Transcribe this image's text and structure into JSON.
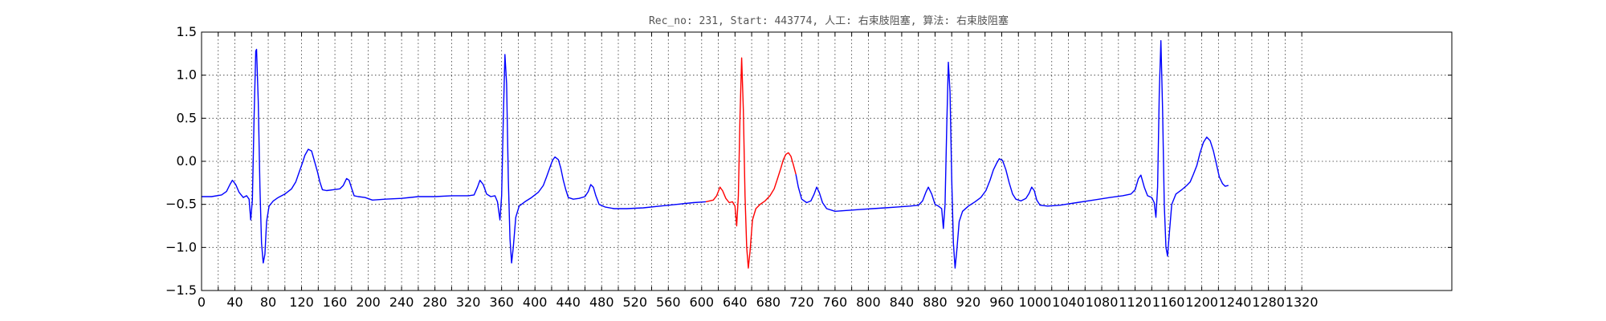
{
  "chart_data": {
    "type": "line",
    "title": "Rec_no: 231, Start: 443774, 人工: 右束肢阻塞, 算法: 右束肢阻塞",
    "xlabel": "",
    "ylabel": "",
    "xlim": [
      0,
      1500
    ],
    "ylim": [
      -1.5,
      1.5
    ],
    "grid": true,
    "yticks": [
      1.5,
      1.0,
      0.5,
      0.0,
      -0.5,
      -1.0,
      -1.5
    ],
    "ytick_labels": [
      "1.5",
      "1.0",
      "0.5",
      "0.0",
      "−0.5",
      "−1.0",
      "−1.5"
    ],
    "xticks": [
      0,
      20,
      40,
      60,
      80,
      100,
      120,
      140,
      160,
      180,
      200,
      220,
      240,
      260,
      280,
      300,
      320,
      340,
      360,
      380,
      400,
      420,
      440,
      460,
      480,
      500,
      520,
      540,
      560,
      580,
      600,
      620,
      640,
      660,
      680,
      700,
      720,
      740,
      760,
      780,
      800,
      820,
      840,
      860,
      880,
      900,
      920,
      940,
      960,
      980,
      1000,
      1020,
      1040,
      1060,
      1080,
      1100,
      1120,
      1140,
      1160,
      1180,
      1200,
      1220,
      1240,
      1260,
      1280,
      1300,
      1320
    ],
    "xtick_labels": [
      "0",
      "",
      "40",
      "",
      "80",
      "",
      "120",
      "",
      "160",
      "",
      "200",
      "",
      "240",
      "",
      "280",
      "",
      "320",
      "",
      "360",
      "",
      "400",
      "",
      "440",
      "",
      "480",
      "",
      "520",
      "",
      "560",
      "",
      "600",
      "",
      "640",
      "",
      "680",
      "",
      "720",
      "",
      "760",
      "",
      "800",
      "",
      "840",
      "",
      "880",
      "",
      "920",
      "",
      "960",
      "",
      "1000",
      "",
      "1040",
      "",
      "1080",
      "",
      "1120",
      "",
      "1160",
      "",
      "1200",
      "",
      "1240",
      "",
      "1280",
      "",
      "1320"
    ],
    "series": [
      {
        "color": "#0000ff",
        "points": [
          [
            0,
            -0.41
          ],
          [
            12,
            -0.41
          ],
          [
            24,
            -0.39
          ],
          [
            30,
            -0.35
          ],
          [
            34,
            -0.27
          ],
          [
            37,
            -0.22
          ],
          [
            41,
            -0.27
          ],
          [
            45,
            -0.36
          ],
          [
            50,
            -0.42
          ],
          [
            54,
            -0.4
          ],
          [
            57,
            -0.44
          ],
          [
            59,
            -0.68
          ],
          [
            61,
            -0.45
          ],
          [
            63,
            0.5
          ],
          [
            65,
            1.28
          ],
          [
            66,
            1.3
          ],
          [
            68,
            0.7
          ],
          [
            70,
            -0.3
          ],
          [
            72,
            -0.95
          ],
          [
            74,
            -1.18
          ],
          [
            76,
            -1.08
          ],
          [
            78,
            -0.7
          ],
          [
            81,
            -0.52
          ],
          [
            86,
            -0.46
          ],
          [
            92,
            -0.42
          ],
          [
            100,
            -0.38
          ],
          [
            108,
            -0.32
          ],
          [
            113,
            -0.24
          ],
          [
            117,
            -0.13
          ],
          [
            121,
            -0.02
          ],
          [
            124,
            0.07
          ],
          [
            128,
            0.14
          ],
          [
            132,
            0.12
          ],
          [
            135,
            0.02
          ],
          [
            139,
            -0.12
          ],
          [
            142,
            -0.24
          ],
          [
            145,
            -0.33
          ],
          [
            150,
            -0.34
          ],
          [
            158,
            -0.33
          ],
          [
            166,
            -0.32
          ],
          [
            170,
            -0.28
          ],
          [
            174,
            -0.2
          ],
          [
            177,
            -0.22
          ],
          [
            180,
            -0.31
          ],
          [
            183,
            -0.4
          ],
          [
            188,
            -0.41
          ],
          [
            196,
            -0.42
          ],
          [
            205,
            -0.45
          ],
          [
            220,
            -0.44
          ],
          [
            240,
            -0.43
          ],
          [
            260,
            -0.41
          ],
          [
            280,
            -0.41
          ],
          [
            300,
            -0.4
          ],
          [
            320,
            -0.4
          ],
          [
            327,
            -0.39
          ],
          [
            331,
            -0.3
          ],
          [
            334,
            -0.22
          ],
          [
            338,
            -0.27
          ],
          [
            342,
            -0.38
          ],
          [
            347,
            -0.41
          ],
          [
            352,
            -0.4
          ],
          [
            355,
            -0.47
          ],
          [
            358,
            -0.68
          ],
          [
            360,
            -0.4
          ],
          [
            362,
            0.5
          ],
          [
            364,
            1.24
          ],
          [
            366,
            0.9
          ],
          [
            368,
            -0.2
          ],
          [
            370,
            -0.9
          ],
          [
            372,
            -1.18
          ],
          [
            374,
            -1.0
          ],
          [
            377,
            -0.65
          ],
          [
            381,
            -0.52
          ],
          [
            388,
            -0.47
          ],
          [
            396,
            -0.42
          ],
          [
            404,
            -0.36
          ],
          [
            410,
            -0.28
          ],
          [
            414,
            -0.18
          ],
          [
            418,
            -0.07
          ],
          [
            421,
            0.01
          ],
          [
            424,
            0.05
          ],
          [
            428,
            0.02
          ],
          [
            431,
            -0.08
          ],
          [
            434,
            -0.22
          ],
          [
            437,
            -0.33
          ],
          [
            440,
            -0.42
          ],
          [
            446,
            -0.44
          ],
          [
            453,
            -0.43
          ],
          [
            460,
            -0.41
          ],
          [
            464,
            -0.35
          ],
          [
            467,
            -0.27
          ],
          [
            470,
            -0.3
          ],
          [
            473,
            -0.4
          ],
          [
            477,
            -0.5
          ],
          [
            484,
            -0.53
          ],
          [
            495,
            -0.55
          ],
          [
            510,
            -0.55
          ],
          [
            530,
            -0.54
          ],
          [
            550,
            -0.52
          ],
          [
            570,
            -0.5
          ],
          [
            590,
            -0.48
          ],
          [
            605,
            -0.47
          ]
        ]
      },
      {
        "color": "#ff0000",
        "points": [
          [
            605,
            -0.47
          ],
          [
            614,
            -0.45
          ],
          [
            618,
            -0.4
          ],
          [
            622,
            -0.3
          ],
          [
            625,
            -0.34
          ],
          [
            629,
            -0.43
          ],
          [
            633,
            -0.48
          ],
          [
            637,
            -0.47
          ],
          [
            640,
            -0.52
          ],
          [
            642,
            -0.75
          ],
          [
            644,
            -0.4
          ],
          [
            646,
            0.5
          ],
          [
            648,
            1.2
          ],
          [
            650,
            0.6
          ],
          [
            652,
            -0.4
          ],
          [
            654,
            -1.0
          ],
          [
            656,
            -1.24
          ],
          [
            658,
            -1.05
          ],
          [
            661,
            -0.68
          ],
          [
            665,
            -0.55
          ],
          [
            670,
            -0.5
          ],
          [
            676,
            -0.46
          ],
          [
            682,
            -0.4
          ],
          [
            687,
            -0.32
          ],
          [
            691,
            -0.2
          ],
          [
            695,
            -0.08
          ],
          [
            698,
            0.02
          ],
          [
            701,
            0.08
          ],
          [
            704,
            0.1
          ],
          [
            707,
            0.06
          ],
          [
            710,
            -0.04
          ],
          [
            713,
            -0.15
          ]
        ]
      },
      {
        "color": "#0000ff",
        "points": [
          [
            713,
            -0.15
          ],
          [
            716,
            -0.3
          ],
          [
            720,
            -0.44
          ],
          [
            726,
            -0.48
          ],
          [
            731,
            -0.46
          ],
          [
            735,
            -0.38
          ],
          [
            738,
            -0.3
          ],
          [
            741,
            -0.36
          ],
          [
            745,
            -0.48
          ],
          [
            750,
            -0.55
          ],
          [
            760,
            -0.58
          ],
          [
            775,
            -0.57
          ],
          [
            790,
            -0.56
          ],
          [
            805,
            -0.55
          ],
          [
            820,
            -0.54
          ],
          [
            835,
            -0.53
          ],
          [
            850,
            -0.52
          ],
          [
            860,
            -0.51
          ],
          [
            865,
            -0.46
          ],
          [
            869,
            -0.36
          ],
          [
            872,
            -0.3
          ],
          [
            876,
            -0.38
          ],
          [
            880,
            -0.5
          ],
          [
            884,
            -0.52
          ],
          [
            888,
            -0.55
          ],
          [
            890,
            -0.78
          ],
          [
            892,
            -0.5
          ],
          [
            894,
            0.4
          ],
          [
            896,
            1.15
          ],
          [
            898,
            0.8
          ],
          [
            900,
            -0.2
          ],
          [
            902,
            -0.95
          ],
          [
            904,
            -1.24
          ],
          [
            906,
            -1.05
          ],
          [
            909,
            -0.7
          ],
          [
            913,
            -0.58
          ],
          [
            920,
            -0.52
          ],
          [
            928,
            -0.47
          ],
          [
            935,
            -0.42
          ],
          [
            941,
            -0.34
          ],
          [
            946,
            -0.22
          ],
          [
            950,
            -0.1
          ],
          [
            954,
            -0.02
          ],
          [
            957,
            0.03
          ],
          [
            961,
            0.01
          ],
          [
            965,
            -0.1
          ],
          [
            969,
            -0.25
          ],
          [
            973,
            -0.38
          ],
          [
            977,
            -0.44
          ],
          [
            983,
            -0.46
          ],
          [
            989,
            -0.43
          ],
          [
            993,
            -0.37
          ],
          [
            996,
            -0.3
          ],
          [
            999,
            -0.34
          ],
          [
            1002,
            -0.45
          ],
          [
            1006,
            -0.51
          ],
          [
            1015,
            -0.52
          ],
          [
            1030,
            -0.51
          ],
          [
            1050,
            -0.48
          ],
          [
            1070,
            -0.45
          ],
          [
            1090,
            -0.42
          ],
          [
            1105,
            -0.4
          ],
          [
            1115,
            -0.38
          ],
          [
            1120,
            -0.33
          ],
          [
            1124,
            -0.2
          ],
          [
            1127,
            -0.16
          ],
          [
            1131,
            -0.3
          ],
          [
            1135,
            -0.4
          ],
          [
            1140,
            -0.42
          ],
          [
            1143,
            -0.48
          ],
          [
            1145,
            -0.65
          ],
          [
            1147,
            -0.3
          ],
          [
            1149,
            0.8
          ],
          [
            1151,
            1.4
          ],
          [
            1153,
            0.6
          ],
          [
            1155,
            -0.5
          ],
          [
            1157,
            -1.0
          ],
          [
            1159,
            -1.1
          ],
          [
            1161,
            -0.85
          ],
          [
            1164,
            -0.5
          ],
          [
            1169,
            -0.38
          ],
          [
            1176,
            -0.33
          ],
          [
            1182,
            -0.28
          ],
          [
            1186,
            -0.24
          ],
          [
            1190,
            -0.15
          ],
          [
            1194,
            -0.05
          ],
          [
            1198,
            0.1
          ],
          [
            1202,
            0.22
          ],
          [
            1206,
            0.28
          ],
          [
            1210,
            0.24
          ],
          [
            1214,
            0.12
          ],
          [
            1218,
            -0.05
          ],
          [
            1221,
            -0.18
          ],
          [
            1225,
            -0.26
          ],
          [
            1228,
            -0.29
          ],
          [
            1232,
            -0.28
          ]
        ]
      }
    ]
  }
}
